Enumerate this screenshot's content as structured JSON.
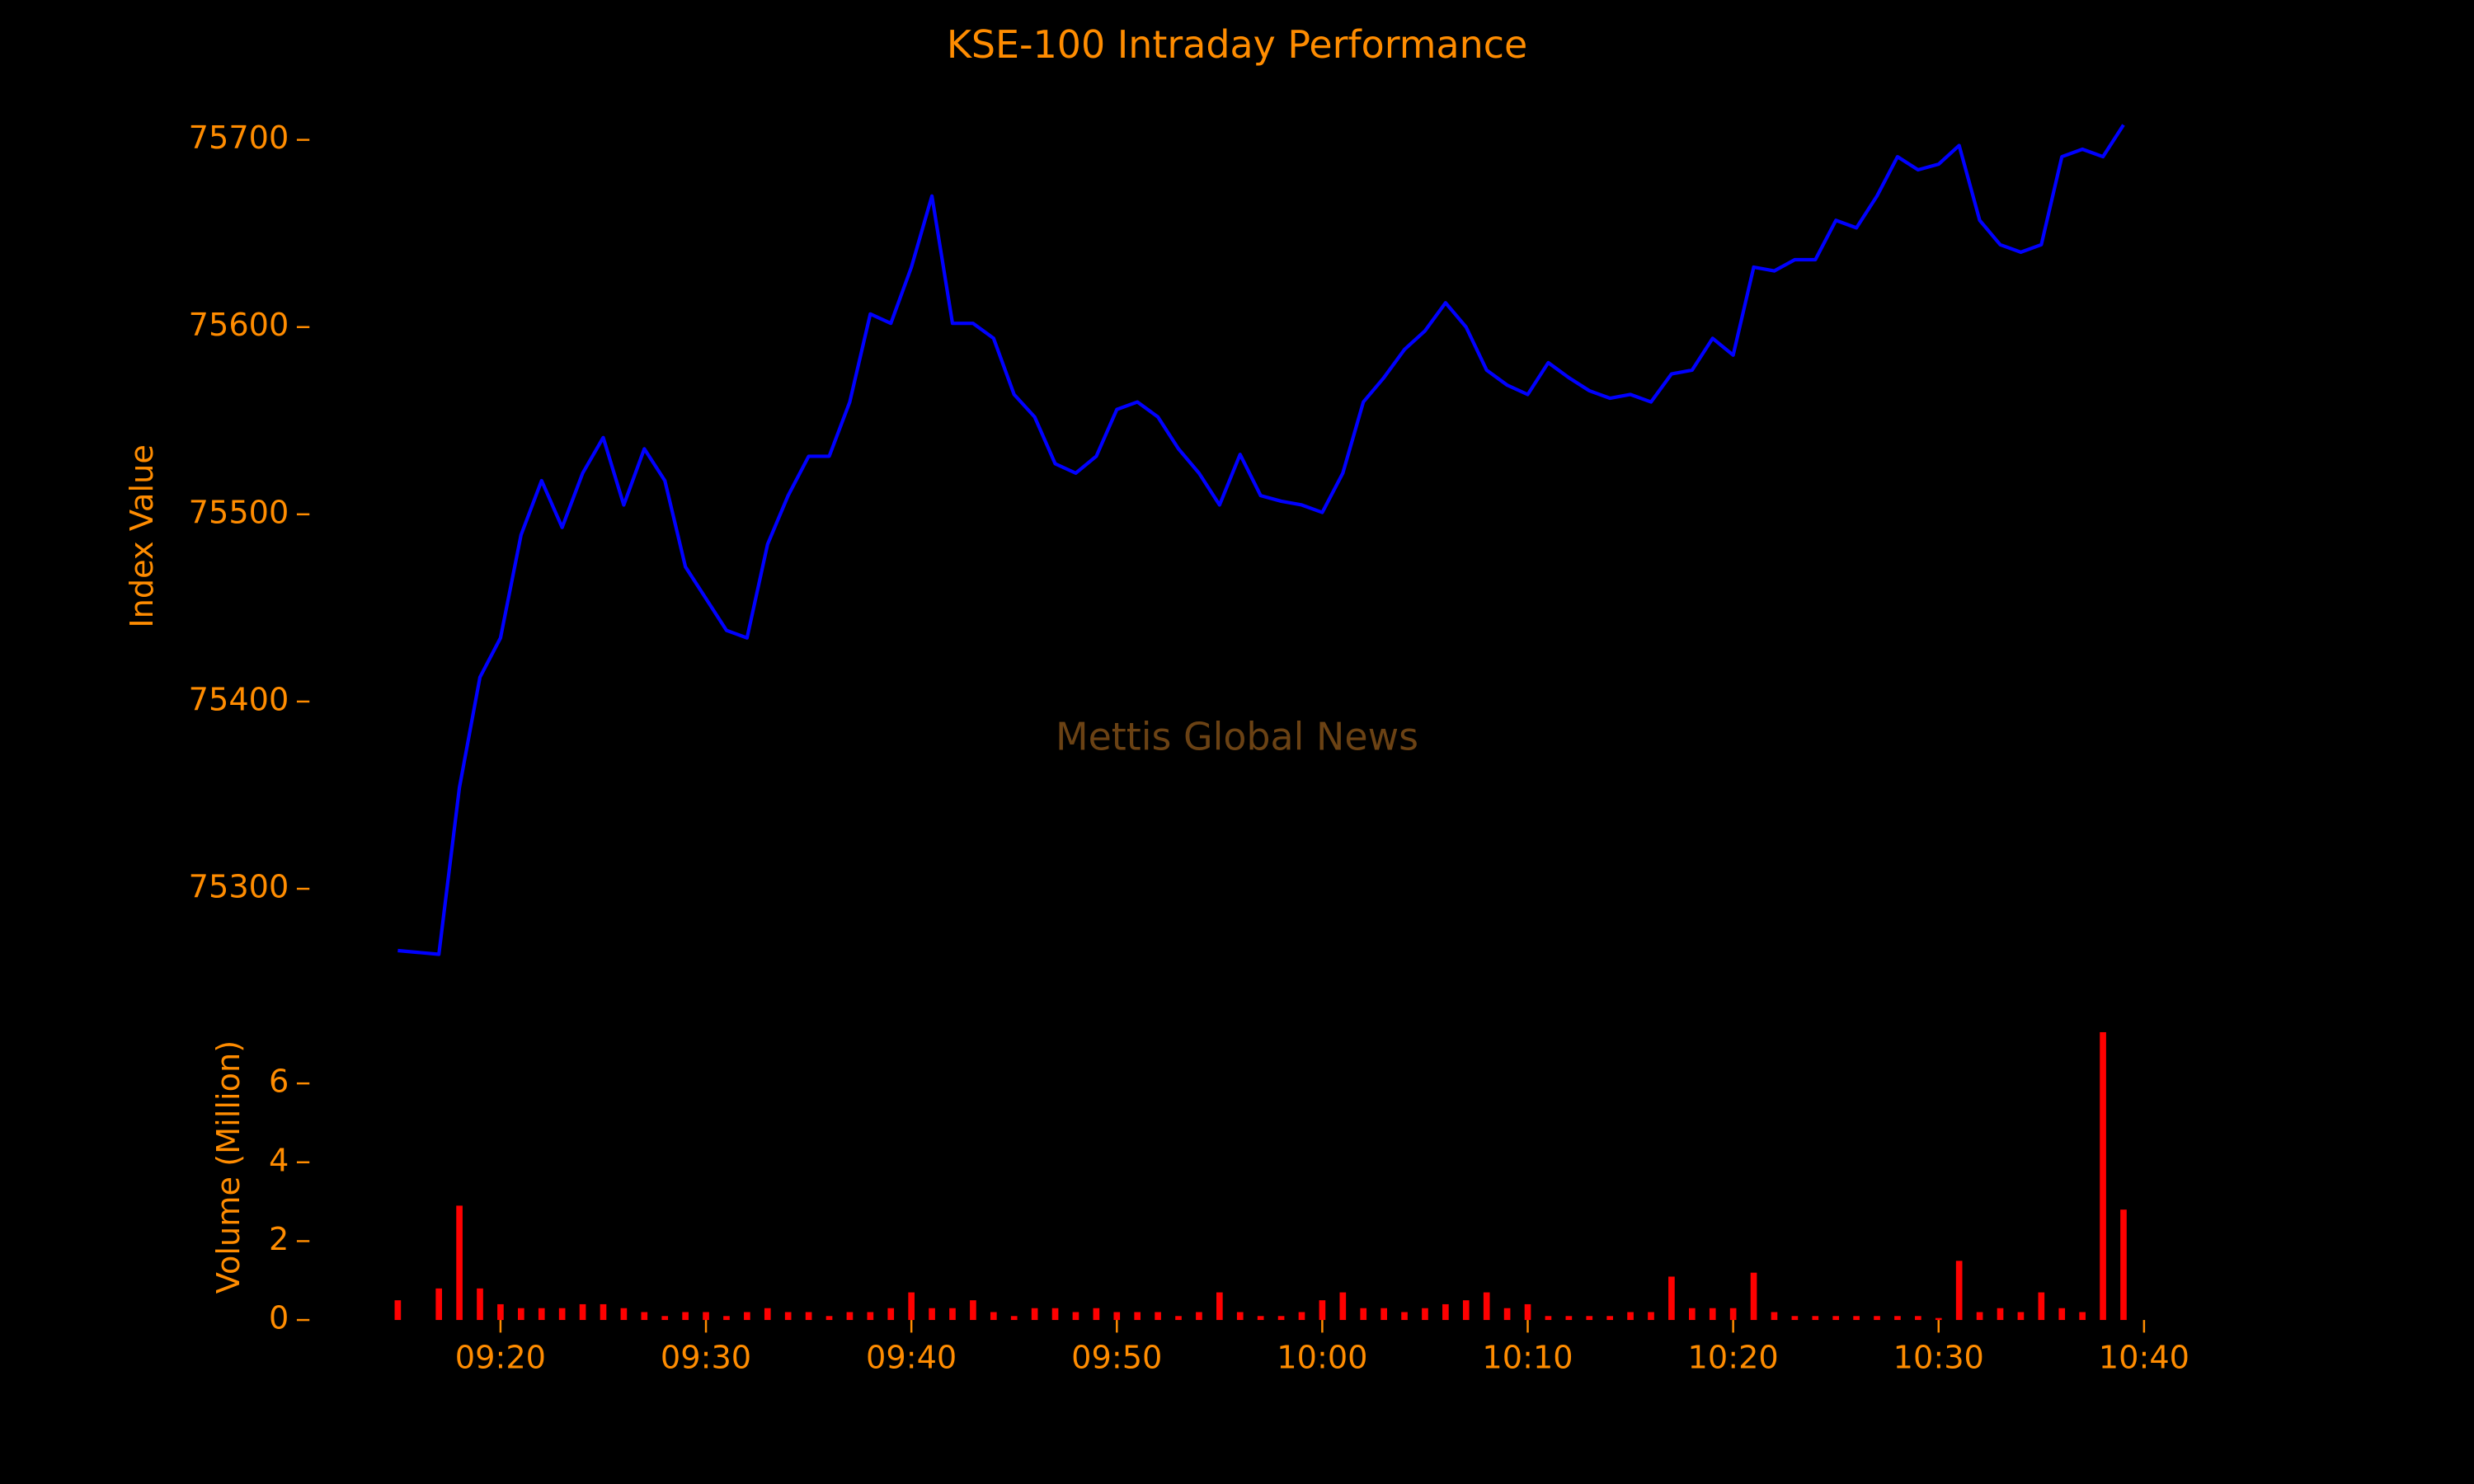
{
  "chart_data": [
    {
      "type": "line",
      "title": "KSE-100 Intraday Performance",
      "ylabel": "Index Value",
      "annotation": "Mettis Global News",
      "x": [
        "09:15",
        "09:16",
        "09:17",
        "09:18",
        "09:19",
        "09:20",
        "09:21",
        "09:22",
        "09:23",
        "09:24",
        "09:25",
        "09:26",
        "09:27",
        "09:28",
        "09:29",
        "09:30",
        "09:31",
        "09:32",
        "09:33",
        "09:34",
        "09:35",
        "09:36",
        "09:37",
        "09:38",
        "09:39",
        "09:40",
        "09:41",
        "09:42",
        "09:43",
        "09:44",
        "09:45",
        "09:46",
        "09:47",
        "09:48",
        "09:49",
        "09:50",
        "09:51",
        "09:52",
        "09:53",
        "09:54",
        "09:55",
        "09:56",
        "09:57",
        "09:58",
        "09:59",
        "10:00",
        "10:01",
        "10:02",
        "10:03",
        "10:04",
        "10:05",
        "10:06",
        "10:07",
        "10:08",
        "10:09",
        "10:10",
        "10:11",
        "10:12",
        "10:13",
        "10:14",
        "10:15",
        "10:16",
        "10:17",
        "10:18",
        "10:19",
        "10:20",
        "10:21",
        "10:22",
        "10:23",
        "10:24",
        "10:25",
        "10:26",
        "10:27",
        "10:28",
        "10:29",
        "10:30",
        "10:31",
        "10:32",
        "10:33",
        "10:34",
        "10:35",
        "10:36",
        "10:37",
        "10:38",
        "10:39"
      ],
      "values": [
        75267,
        75266,
        75265,
        75354,
        75413,
        75434,
        75489,
        75518,
        75493,
        75522,
        75541,
        75505,
        75535,
        75518,
        75472,
        75455,
        75438,
        75434,
        75484,
        75510,
        75531,
        75531,
        75560,
        75607,
        75602,
        75632,
        75670,
        75602,
        75602,
        75594,
        75564,
        75552,
        75527,
        75522,
        75531,
        75556,
        75560,
        75552,
        75535,
        75522,
        75505,
        75532,
        75510,
        75507,
        75505,
        75501,
        75522,
        75560,
        75573,
        75588,
        75598,
        75613,
        75600,
        75577,
        75569,
        75564,
        75581,
        75573,
        75566,
        75562,
        75564,
        75560,
        75575,
        75577,
        75594,
        75585,
        75632,
        75630,
        75636,
        75636,
        75657,
        75653,
        75670,
        75691,
        75684,
        75687,
        75697,
        75657,
        75644,
        75640,
        75644,
        75691,
        75695,
        75691,
        75708
      ],
      "color": "#0000ff",
      "xlim": [
        "09:15",
        "10:40"
      ],
      "ylim": [
        75255,
        75725
      ],
      "yticks": [
        75300,
        75400,
        75500,
        75600,
        75700
      ]
    },
    {
      "type": "bar",
      "ylabel": "Volume (Million)",
      "x": [
        "09:15",
        "09:16",
        "09:17",
        "09:18",
        "09:19",
        "09:20",
        "09:21",
        "09:22",
        "09:23",
        "09:24",
        "09:25",
        "09:26",
        "09:27",
        "09:28",
        "09:29",
        "09:30",
        "09:31",
        "09:32",
        "09:33",
        "09:34",
        "09:35",
        "09:36",
        "09:37",
        "09:38",
        "09:39",
        "09:40",
        "09:41",
        "09:42",
        "09:43",
        "09:44",
        "09:45",
        "09:46",
        "09:47",
        "09:48",
        "09:49",
        "09:50",
        "09:51",
        "09:52",
        "09:53",
        "09:54",
        "09:55",
        "09:56",
        "09:57",
        "09:58",
        "09:59",
        "10:00",
        "10:01",
        "10:02",
        "10:03",
        "10:04",
        "10:05",
        "10:06",
        "10:07",
        "10:08",
        "10:09",
        "10:10",
        "10:11",
        "10:12",
        "10:13",
        "10:14",
        "10:15",
        "10:16",
        "10:17",
        "10:18",
        "10:19",
        "10:20",
        "10:21",
        "10:22",
        "10:23",
        "10:24",
        "10:25",
        "10:26",
        "10:27",
        "10:28",
        "10:29",
        "10:30",
        "10:31",
        "10:32",
        "10:33",
        "10:34",
        "10:35",
        "10:36",
        "10:37",
        "10:38",
        "10:39"
      ],
      "values": [
        0.5,
        0,
        0.8,
        2.9,
        0.8,
        0.4,
        0.3,
        0.3,
        0.3,
        0.4,
        0.4,
        0.3,
        0.2,
        0.1,
        0.2,
        0.2,
        0.1,
        0.2,
        0.3,
        0.2,
        0.2,
        0.1,
        0.2,
        0.2,
        0.3,
        0.7,
        0.3,
        0.3,
        0.5,
        0.2,
        0.1,
        0.3,
        0.3,
        0.2,
        0.3,
        0.2,
        0.2,
        0.2,
        0.1,
        0.2,
        0.7,
        0.2,
        0.1,
        0.1,
        0.2,
        0.5,
        0.7,
        0.3,
        0.3,
        0.2,
        0.3,
        0.4,
        0.5,
        0.7,
        0.3,
        0.4,
        0.1,
        0.1,
        0.1,
        0.1,
        0.2,
        0.2,
        1.1,
        0.3,
        0.3,
        0.3,
        1.2,
        0.2,
        0.1,
        0.1,
        0.1,
        0.1,
        0.1,
        0.1,
        0.1,
        0.05,
        1.5,
        0.2,
        0.3,
        0.2,
        0.7,
        0.3,
        0.2,
        7.3,
        2.8
      ],
      "color": "#ff0000",
      "xlim": [
        "09:15",
        "10:40"
      ],
      "ylim": [
        0,
        7.4
      ],
      "yticks": [
        0,
        2,
        4,
        6
      ],
      "xticks": [
        "09:20",
        "09:30",
        "09:40",
        "09:50",
        "10:00",
        "10:10",
        "10:20",
        "10:30",
        "10:40"
      ]
    }
  ]
}
